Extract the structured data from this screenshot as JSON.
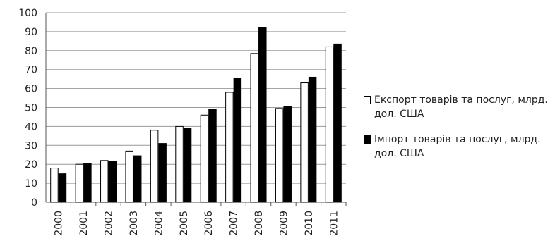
{
  "chart_data": {
    "type": "bar",
    "categories": [
      "2000",
      "2001",
      "2002",
      "2003",
      "2004",
      "2005",
      "2006",
      "2007",
      "2008",
      "2009",
      "2010",
      "2011"
    ],
    "series": [
      {
        "name": "Експорт товарів та послуг, млрд. дол. США",
        "values": [
          18,
          20,
          22,
          27,
          38,
          40,
          46,
          58,
          78.5,
          49.5,
          63,
          82
        ],
        "color": "#ffffff"
      },
      {
        "name": "Імпорт товарів та послуг, млрд. дол. США",
        "values": [
          15,
          20.5,
          21.5,
          24.5,
          31,
          39,
          49,
          65.5,
          92,
          50.5,
          66,
          83.5
        ],
        "color": "#000000"
      }
    ],
    "ylim": [
      0,
      100
    ],
    "yticks": [
      0,
      10,
      20,
      30,
      40,
      50,
      60,
      70,
      80,
      90,
      100
    ],
    "grid": true,
    "legend_position": "right",
    "title": "",
    "xlabel": "",
    "ylabel": ""
  },
  "legend": {
    "items": [
      {
        "label": "Експорт товарів та послуг, млрд. дол. США",
        "color": "#ffffff"
      },
      {
        "label": "Імпорт товарів та послуг, млрд. дол. США",
        "color": "#000000"
      }
    ]
  }
}
